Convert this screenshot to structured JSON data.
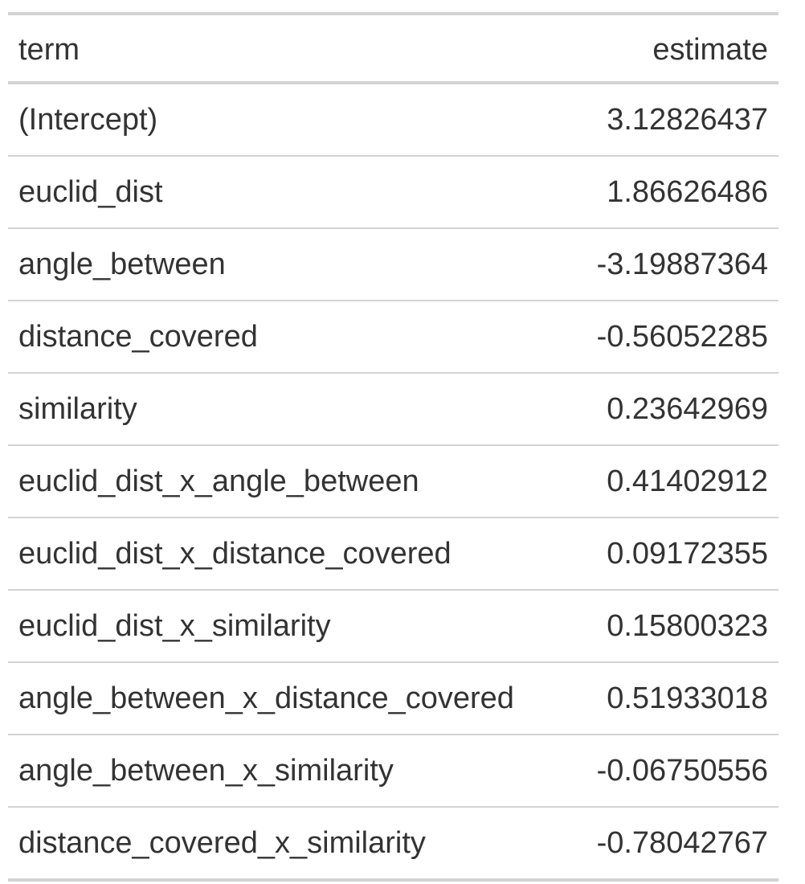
{
  "table": {
    "headers": {
      "term": "term",
      "estimate": "estimate"
    },
    "rows": [
      {
        "term": "(Intercept)",
        "estimate": "3.12826437"
      },
      {
        "term": "euclid_dist",
        "estimate": "1.86626486"
      },
      {
        "term": "angle_between",
        "estimate": "-3.19887364"
      },
      {
        "term": "distance_covered",
        "estimate": "-0.56052285"
      },
      {
        "term": "similarity",
        "estimate": "0.23642969"
      },
      {
        "term": "euclid_dist_x_angle_between",
        "estimate": "0.41402912"
      },
      {
        "term": "euclid_dist_x_distance_covered",
        "estimate": "0.09172355"
      },
      {
        "term": "euclid_dist_x_similarity",
        "estimate": "0.15800323"
      },
      {
        "term": "angle_between_x_distance_covered",
        "estimate": "0.51933018"
      },
      {
        "term": "angle_between_x_similarity",
        "estimate": "-0.06750556"
      },
      {
        "term": "distance_covered_x_similarity",
        "estimate": "-0.78042767"
      }
    ]
  }
}
